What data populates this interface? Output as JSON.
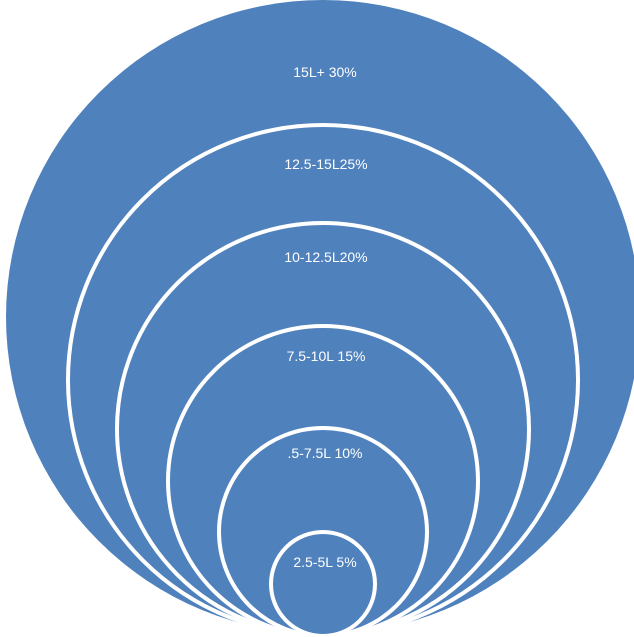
{
  "diagram": {
    "fill_color": "#4F81BD",
    "outline_color": "#FFFFFF",
    "rings": [
      {
        "label": "15L+ 30%"
      },
      {
        "label": "12.5-15L25%"
      },
      {
        "label": "10-12.5L20%"
      },
      {
        "label": "7.5-10L 15%"
      },
      {
        "label": ".5-7.5L 10%"
      },
      {
        "label": "2.5-5L 5%"
      }
    ]
  }
}
